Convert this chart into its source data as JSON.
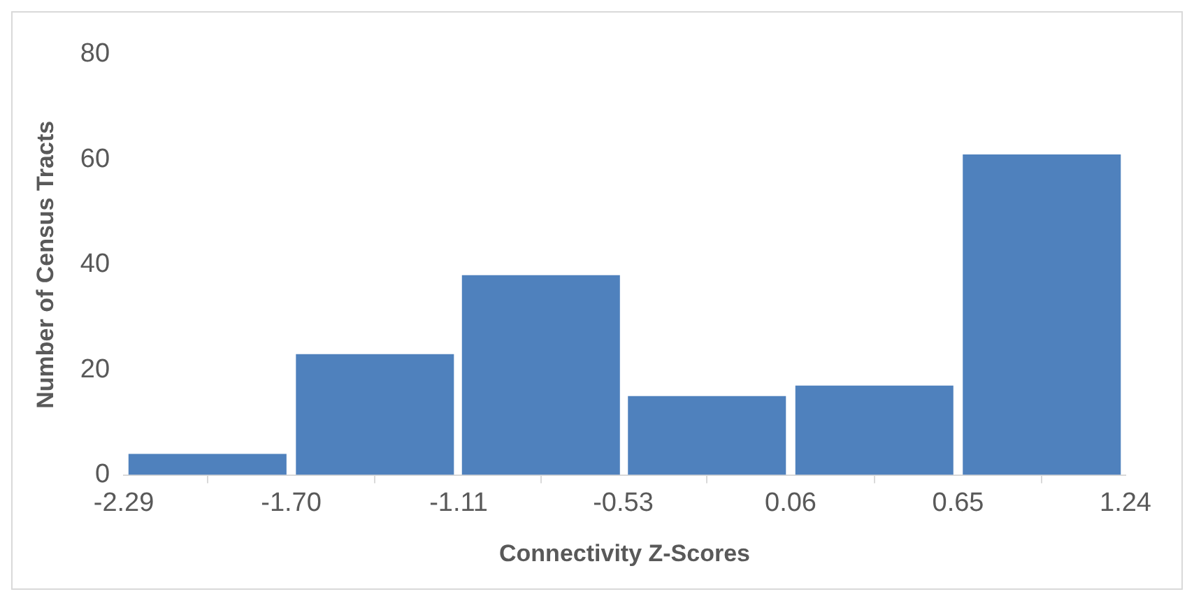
{
  "chart_data": {
    "type": "histogram",
    "xlabel": "Connectivity Z-Scores",
    "ylabel": "Number of Census Tracts",
    "bins": [
      -2.29,
      -1.7,
      -1.11,
      -0.53,
      0.06,
      0.65,
      1.24
    ],
    "values": [
      4,
      23,
      38,
      15,
      17,
      61
    ],
    "color": "#4f81bd",
    "xlim": [
      -2.29,
      1.24
    ],
    "xticks": [
      {
        "value": -2.29,
        "label": "-2.29"
      },
      {
        "value": -1.7,
        "label": "-1.70"
      },
      {
        "value": -1.11,
        "label": "-1.11"
      },
      {
        "value": -0.53,
        "label": "-0.53"
      },
      {
        "value": 0.06,
        "label": "0.06"
      },
      {
        "value": 0.65,
        "label": "0.65"
      },
      {
        "value": 1.24,
        "label": "1.24"
      }
    ],
    "ylim": [
      0,
      80
    ],
    "yticks": [
      0,
      20,
      40,
      60,
      80
    ],
    "grid": false,
    "legend": false
  }
}
